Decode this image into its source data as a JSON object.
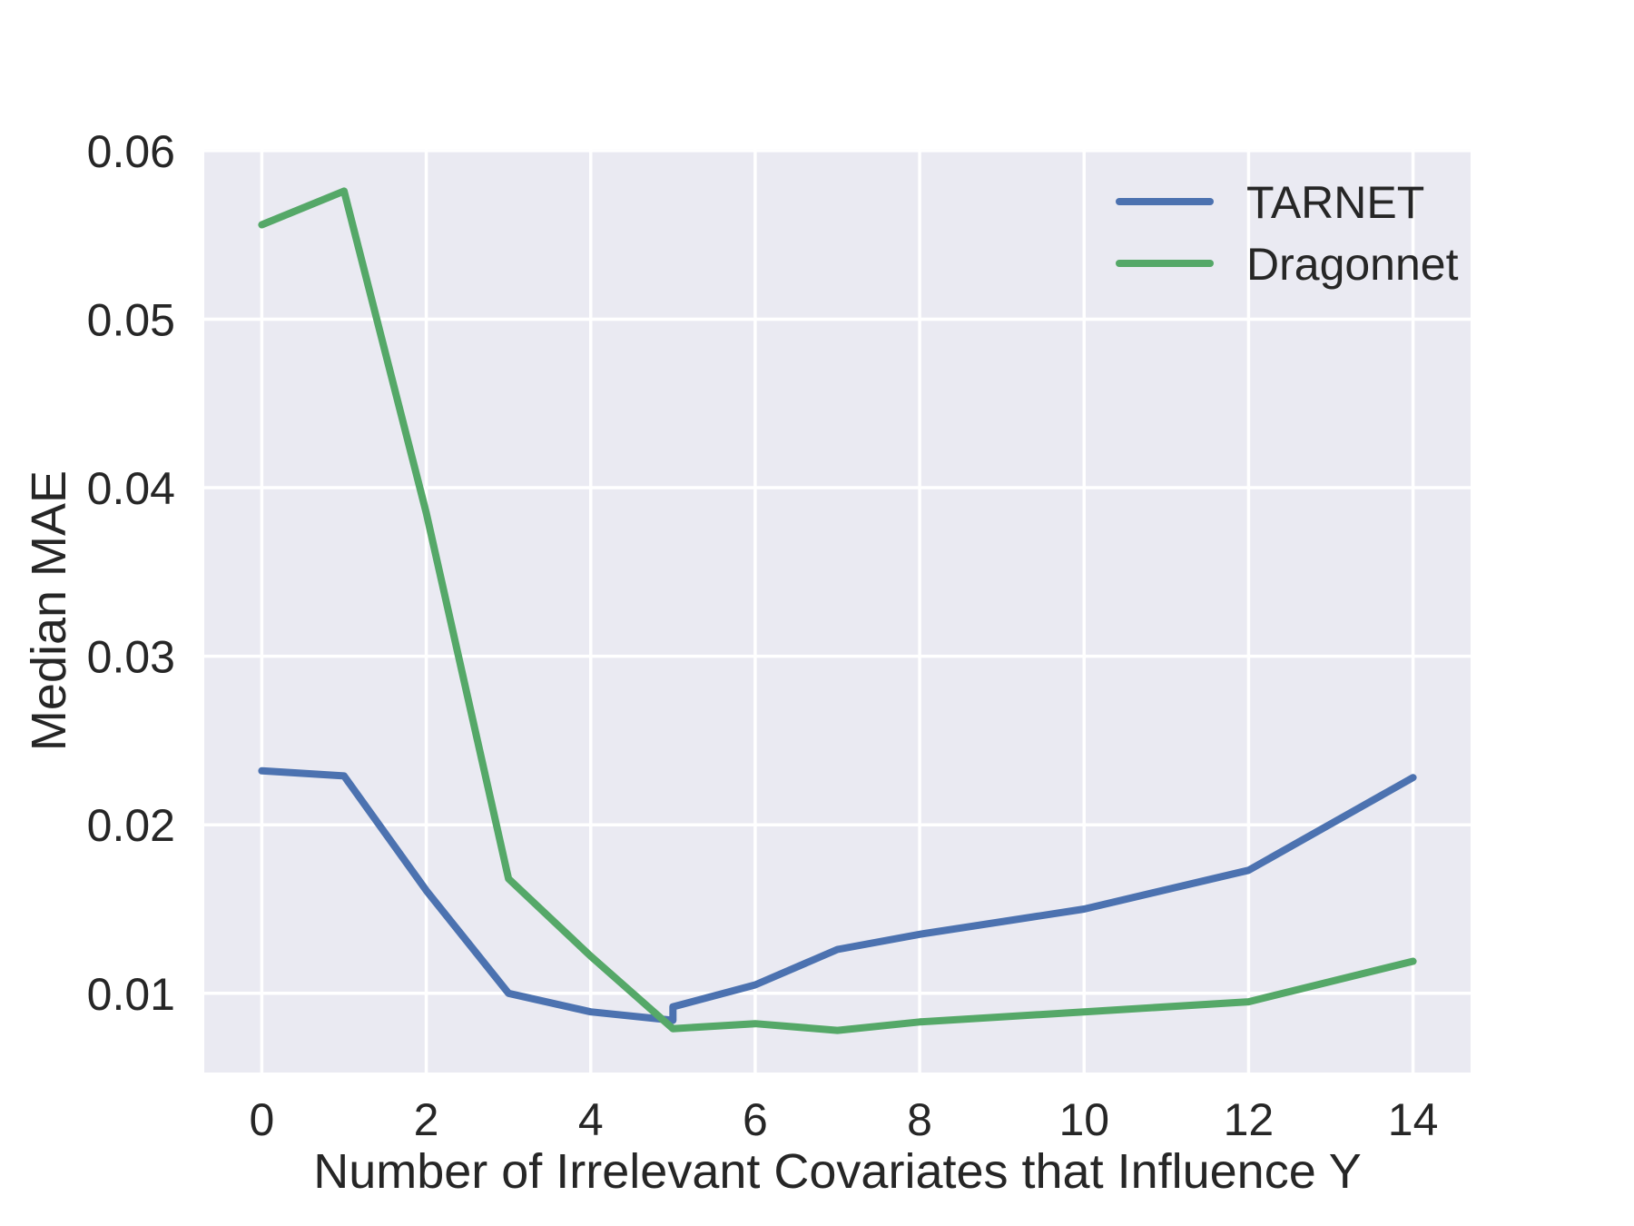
{
  "chart_data": {
    "type": "line",
    "title": "",
    "xlabel": "Number of Irrelevant Covariates that Influence Y",
    "ylabel": "Median MAE",
    "xlim": [
      -0.7,
      14.7
    ],
    "ylim": [
      0.0053,
      0.0601
    ],
    "grid": true,
    "plot_background_color": "#EAEAF2",
    "grid_color": "#FFFFFF",
    "text_color": "#262626",
    "xticks": {
      "values": [
        0,
        2,
        4,
        6,
        8,
        10,
        12,
        14
      ],
      "labels": [
        "0",
        "2",
        "4",
        "6",
        "8",
        "10",
        "12",
        "14"
      ]
    },
    "yticks": {
      "values": [
        0.01,
        0.02,
        0.03,
        0.04,
        0.05,
        0.06
      ],
      "labels": [
        "0.01",
        "0.02",
        "0.03",
        "0.04",
        "0.05",
        "0.06"
      ]
    },
    "legend": {
      "position": "upper right",
      "frame": false,
      "labels": [
        "TARNET",
        "Dragonnet"
      ]
    },
    "series": [
      {
        "name": "TARNET",
        "color": "#4C72B0",
        "x": [
          0,
          1,
          2,
          3,
          4,
          5,
          5,
          6,
          7,
          8,
          10,
          12,
          14
        ],
        "y": [
          0.0232,
          0.0229,
          0.0161,
          0.01,
          0.0089,
          0.0084,
          0.0092,
          0.0105,
          0.0126,
          0.0135,
          0.015,
          0.0173,
          0.0228
        ]
      },
      {
        "name": "Dragonnet",
        "color": "#55A868",
        "x": [
          0,
          1,
          2,
          3,
          4,
          5,
          6,
          7,
          8,
          10,
          12,
          14
        ],
        "y": [
          0.0556,
          0.0576,
          0.0385,
          0.0168,
          0.0122,
          0.0079,
          0.0082,
          0.0078,
          0.0083,
          0.0089,
          0.0095,
          0.0119
        ]
      }
    ]
  }
}
